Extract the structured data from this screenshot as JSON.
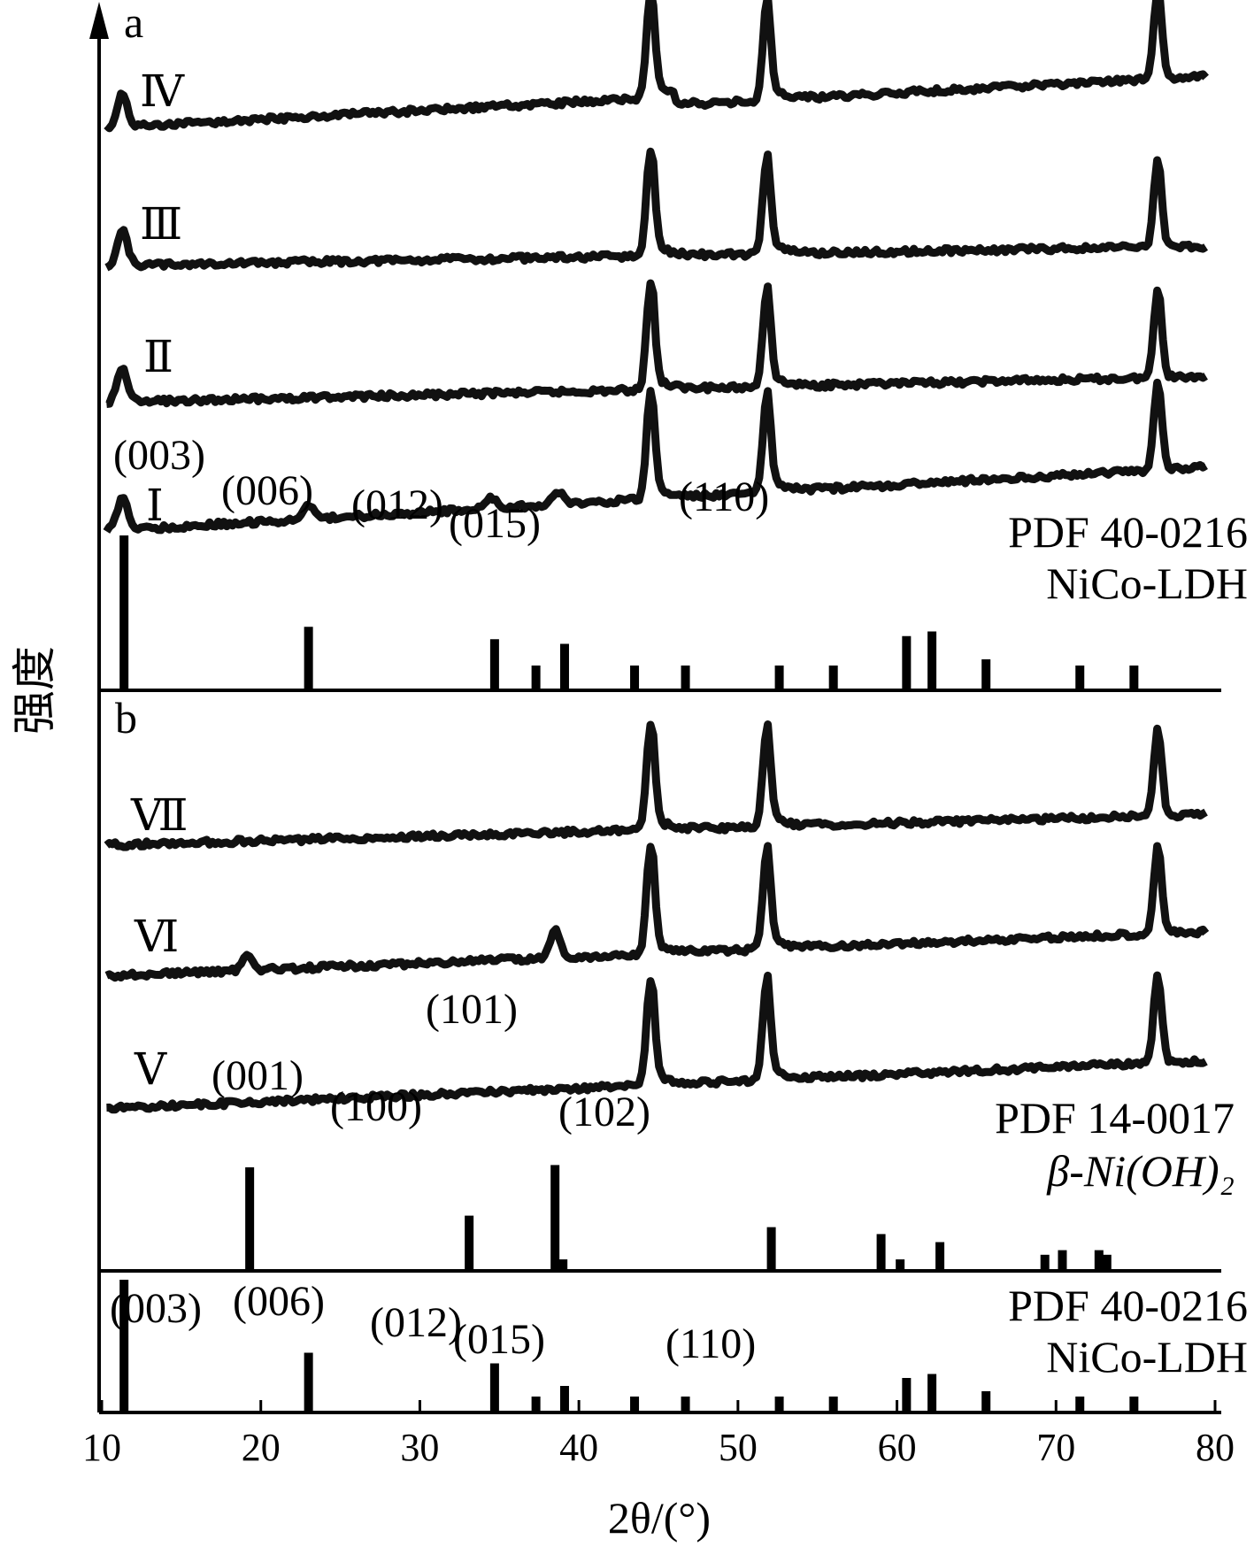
{
  "chart_data": {
    "type": "line",
    "xlabel": "2θ/(°)",
    "ylabel": "强度",
    "xlim": [
      10,
      80
    ],
    "xticks": [
      10,
      20,
      30,
      40,
      50,
      60,
      70,
      80
    ],
    "panels": [
      {
        "label": "a",
        "series": [
          {
            "name": "Ⅳ",
            "bragg_peaks": [
              11.3,
              44.5,
              51.8,
              76.4
            ]
          },
          {
            "name": "Ⅲ",
            "bragg_peaks": [
              11.3,
              44.5,
              51.8,
              76.4
            ]
          },
          {
            "name": "Ⅱ",
            "bragg_peaks": [
              11.3,
              44.5,
              51.8,
              76.4
            ]
          },
          {
            "name": "Ⅰ",
            "bragg_peaks": [
              11.3,
              23.0,
              34.5,
              38.7,
              44.5,
              51.8,
              76.4
            ]
          }
        ],
        "references": [
          {
            "pdf": "PDF 40-0216",
            "phase": "NiCo-LDH",
            "peaks": [
              {
                "x": 11.4,
                "rel": 1.0,
                "hkl": "(003)"
              },
              {
                "x": 23.0,
                "rel": 0.41,
                "hkl": "(006)"
              },
              {
                "x": 34.7,
                "rel": 0.33,
                "hkl": "(012)"
              },
              {
                "x": 37.3,
                "rel": 0.16
              },
              {
                "x": 39.1,
                "rel": 0.3,
                "hkl": "(015)"
              },
              {
                "x": 43.5,
                "rel": 0.16
              },
              {
                "x": 46.7,
                "rel": 0.16
              },
              {
                "x": 52.6,
                "rel": 0.16
              },
              {
                "x": 56.0,
                "rel": 0.16
              },
              {
                "x": 60.6,
                "rel": 0.35,
                "hkl": "(110)"
              },
              {
                "x": 62.2,
                "rel": 0.38
              },
              {
                "x": 65.6,
                "rel": 0.2
              },
              {
                "x": 71.5,
                "rel": 0.16
              },
              {
                "x": 74.9,
                "rel": 0.16
              }
            ]
          }
        ]
      },
      {
        "label": "b",
        "series": [
          {
            "name": "Ⅶ",
            "bragg_peaks": [
              44.5,
              51.8,
              76.4
            ]
          },
          {
            "name": "Ⅵ",
            "bragg_peaks": [
              19.2,
              38.5,
              44.5,
              51.8,
              76.4
            ]
          },
          {
            "name": "Ⅴ",
            "bragg_peaks": [
              44.5,
              51.8,
              76.4
            ]
          }
        ],
        "references": [
          {
            "pdf": "PDF 14-0017",
            "phase": "β-Ni(OH)₂",
            "peaks": [
              {
                "x": 19.3,
                "rel": 0.9,
                "hkl": "(001)"
              },
              {
                "x": 33.1,
                "rel": 0.48,
                "hkl": "(100)"
              },
              {
                "x": 38.5,
                "rel": 0.92,
                "hkl": "(101)"
              },
              {
                "x": 39.0,
                "rel": 0.1
              },
              {
                "x": 52.1,
                "rel": 0.38,
                "hkl": "(102)"
              },
              {
                "x": 59.0,
                "rel": 0.32
              },
              {
                "x": 60.2,
                "rel": 0.1
              },
              {
                "x": 62.7,
                "rel": 0.25
              },
              {
                "x": 69.3,
                "rel": 0.14
              },
              {
                "x": 70.4,
                "rel": 0.18
              },
              {
                "x": 72.7,
                "rel": 0.18
              },
              {
                "x": 73.2,
                "rel": 0.14
              }
            ]
          },
          {
            "pdf": "PDF 40-0216",
            "phase": "NiCo-LDH",
            "peaks": [
              {
                "x": 11.4,
                "rel": 1.0,
                "hkl": "(003)"
              },
              {
                "x": 23.0,
                "rel": 0.45,
                "hkl": "(006)"
              },
              {
                "x": 34.7,
                "rel": 0.37,
                "hkl": "(012)"
              },
              {
                "x": 37.3,
                "rel": 0.12
              },
              {
                "x": 39.1,
                "rel": 0.2,
                "hkl": "(015)"
              },
              {
                "x": 43.5,
                "rel": 0.12
              },
              {
                "x": 46.7,
                "rel": 0.12
              },
              {
                "x": 52.6,
                "rel": 0.12
              },
              {
                "x": 56.0,
                "rel": 0.12
              },
              {
                "x": 60.6,
                "rel": 0.26,
                "hkl": "(110)"
              },
              {
                "x": 62.2,
                "rel": 0.29
              },
              {
                "x": 65.6,
                "rel": 0.16
              },
              {
                "x": 71.5,
                "rel": 0.12
              },
              {
                "x": 74.9,
                "rel": 0.12
              }
            ]
          }
        ]
      }
    ]
  }
}
